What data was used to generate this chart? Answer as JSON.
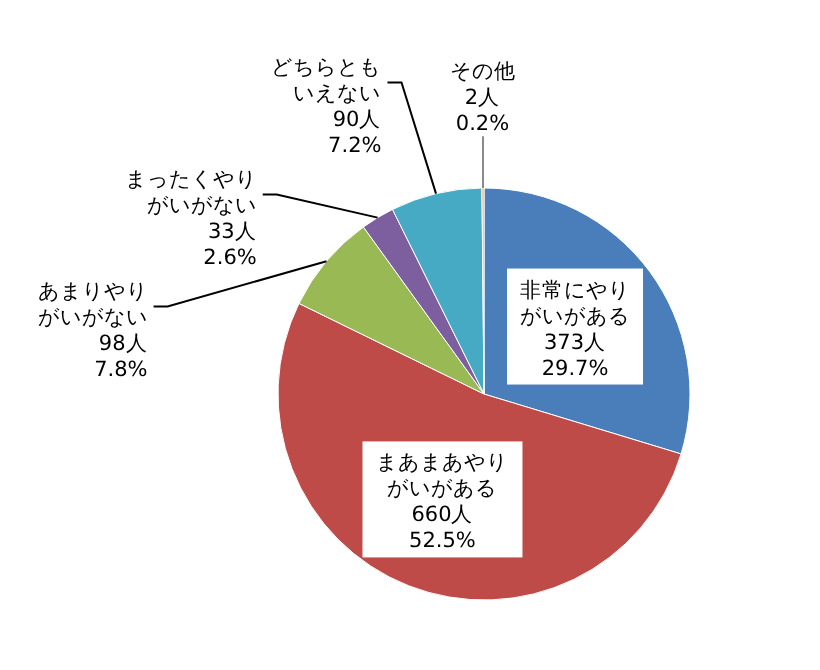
{
  "chart_data": {
    "type": "pie",
    "categories": [
      "非常にやりがいがある",
      "まあまあやりがいがある",
      "あまりやりがいがない",
      "まったくやりがいがない",
      "どちらともいえない",
      "その他"
    ],
    "values": [
      373,
      660,
      98,
      33,
      90,
      2
    ],
    "value_labels": [
      "373人\n29.7%",
      "660人\n52.5%",
      "98人\n7.8%",
      "33人\n2.6%",
      "90人\n7.2%",
      "2人\n0.2%"
    ],
    "colors": [
      "#4a7ebb",
      "#be4b48",
      "#98b954",
      "#7d5fa0",
      "#46aac5",
      "#f79646"
    ]
  }
}
